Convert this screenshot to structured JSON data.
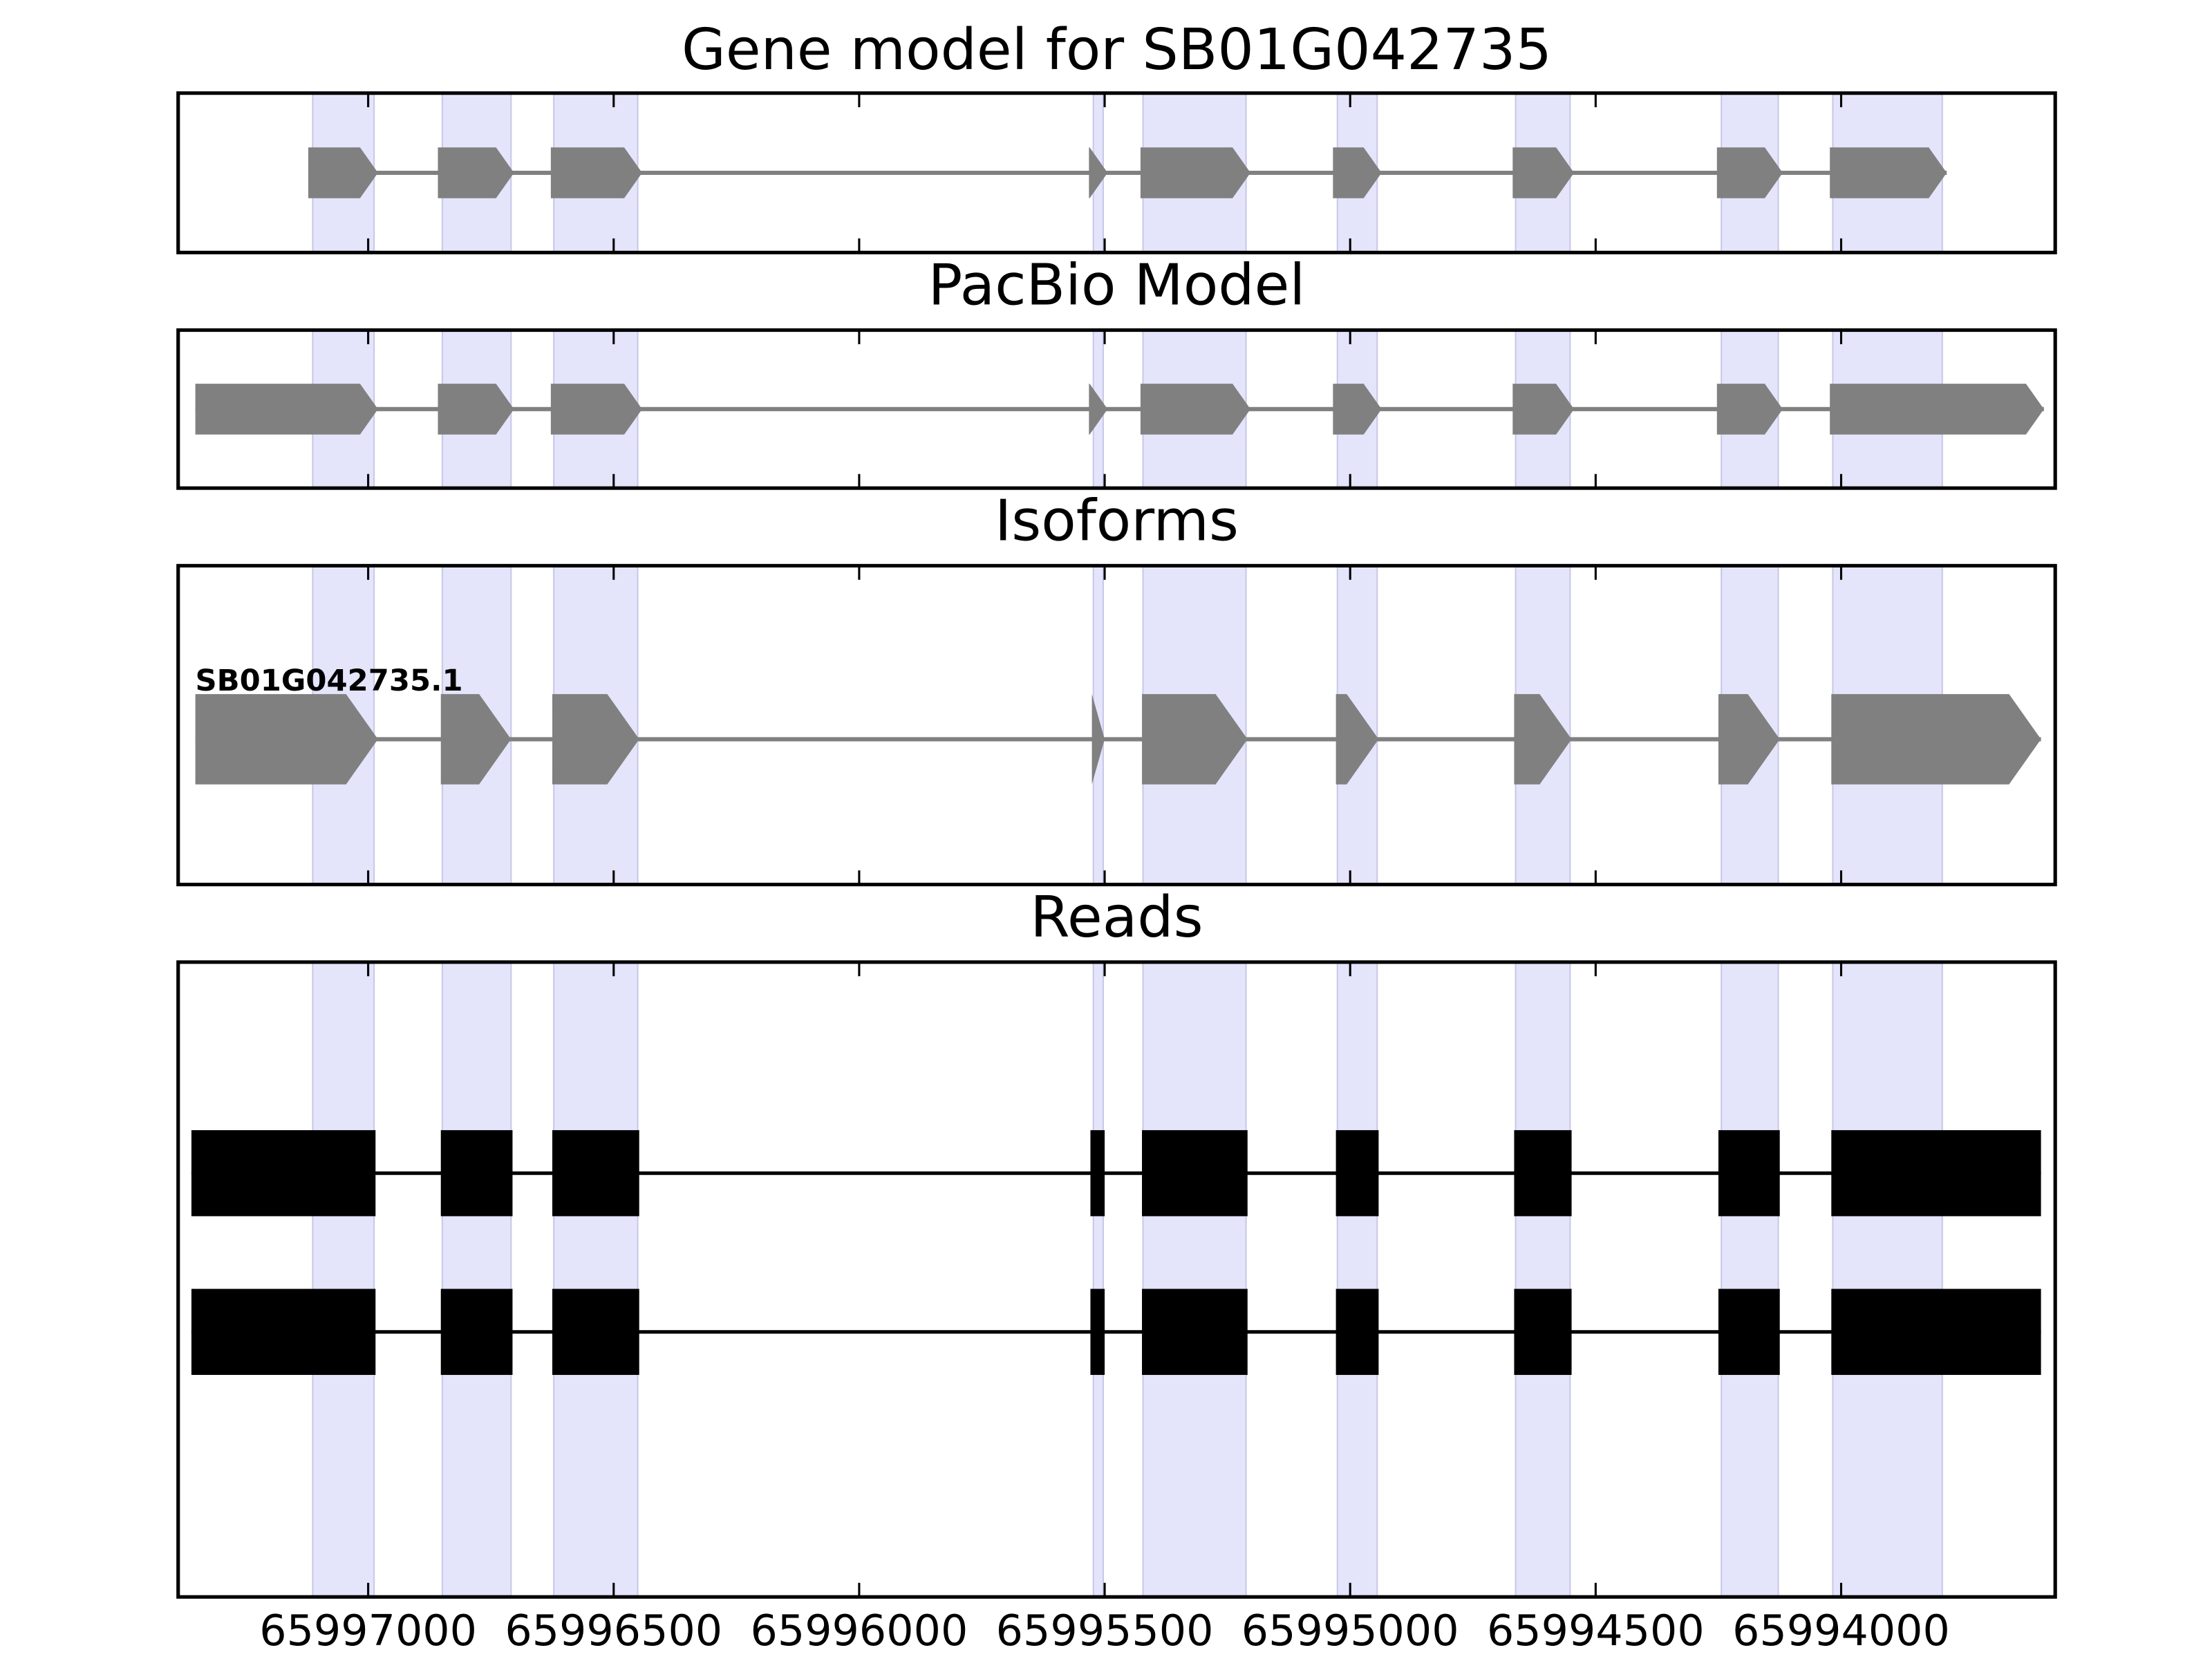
{
  "chart_data": {
    "type": "gene-track",
    "xlim": [
      65997387,
      65993564
    ],
    "xticks": [
      65997000,
      65996500,
      65996000,
      65995500,
      65995000,
      65994500,
      65994000
    ],
    "shade_color": "#e4e4fb",
    "exons": [
      [
        65997113,
        65996988
      ],
      [
        65996849,
        65996709
      ],
      [
        65996622,
        65996451
      ],
      [
        65995523,
        65995503
      ],
      [
        65995422,
        65995212
      ],
      [
        65995026,
        65994945
      ],
      [
        65994663,
        65994552
      ],
      [
        65994244,
        65994128
      ],
      [
        65994017,
        65993794
      ]
    ],
    "panels": [
      {
        "title": "Gene model for SB01G042735",
        "kind": "model",
        "color": "#808080",
        "features": [
          [
            65997122,
            65996980
          ],
          [
            65996858,
            65996703
          ],
          [
            65996628,
            65996442
          ],
          [
            65995532,
            65995494
          ],
          [
            65995427,
            65995203
          ],
          [
            65995035,
            65994936
          ],
          [
            65994669,
            65994544
          ],
          [
            65994253,
            65994119
          ],
          [
            65994023,
            65993785
          ]
        ]
      },
      {
        "title": "PacBio Model",
        "kind": "model",
        "color": "#808080",
        "features": [
          [
            65997352,
            65996980
          ],
          [
            65996858,
            65996703
          ],
          [
            65996628,
            65996442
          ],
          [
            65995532,
            65995494
          ],
          [
            65995427,
            65995203
          ],
          [
            65995035,
            65994936
          ],
          [
            65994669,
            65994544
          ],
          [
            65994253,
            65994119
          ],
          [
            65994023,
            65993587
          ]
        ]
      },
      {
        "title": "Isoforms",
        "kind": "isoform",
        "color": "#808080",
        "isoforms": [
          {
            "name": "SB01G042735.1",
            "features": [
              [
                65997352,
                65996980
              ],
              [
                65996852,
                65996709
              ],
              [
                65996625,
                65996448
              ],
              [
                65995526,
                65995500
              ],
              [
                65995424,
                65995209
              ],
              [
                65995029,
                65994942
              ],
              [
                65994666,
                65994549
              ],
              [
                65994250,
                65994125
              ],
              [
                65994020,
                65993593
              ]
            ]
          }
        ]
      },
      {
        "title": "Reads",
        "kind": "reads",
        "color": "#000000",
        "reads": [
          [
            [
              65997360,
              65996985
            ],
            [
              65996852,
              65996706
            ],
            [
              65996625,
              65996448
            ],
            [
              65995529,
              65995500
            ],
            [
              65995424,
              65995209
            ],
            [
              65995029,
              65994942
            ],
            [
              65994666,
              65994549
            ],
            [
              65994250,
              65994125
            ],
            [
              65994020,
              65993593
            ]
          ],
          [
            [
              65997360,
              65996985
            ],
            [
              65996852,
              65996706
            ],
            [
              65996625,
              65996448
            ],
            [
              65995529,
              65995500
            ],
            [
              65995424,
              65995209
            ],
            [
              65995029,
              65994942
            ],
            [
              65994666,
              65994549
            ],
            [
              65994250,
              65994125
            ],
            [
              65994020,
              65993593
            ]
          ]
        ]
      }
    ]
  }
}
